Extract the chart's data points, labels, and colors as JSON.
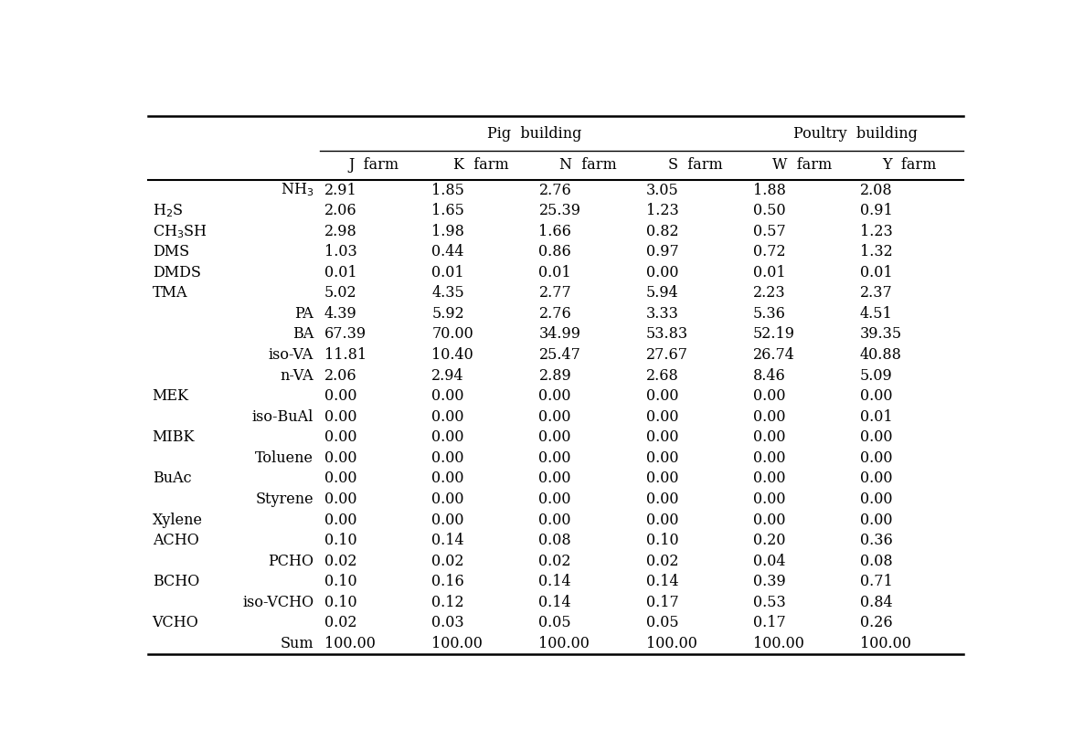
{
  "row_labels_display": [
    "NH$_3$",
    "H$_2$S",
    "CH$_3$SH",
    "DMS",
    "DMDS",
    "TMA",
    "PA",
    "BA",
    "iso-VA",
    "n-VA",
    "MEK",
    "iso-BuAl",
    "MIBK",
    "Toluene",
    "BuAc",
    "Styrene",
    "Xylene",
    "ACHO",
    "PCHO",
    "BCHO",
    "iso-VCHO",
    "VCHO",
    "Sum"
  ],
  "row_alignments": [
    "right",
    "left",
    "left",
    "left",
    "left",
    "left",
    "right",
    "right",
    "right",
    "right",
    "left",
    "right",
    "left",
    "right",
    "left",
    "right",
    "left",
    "left",
    "right",
    "left",
    "right",
    "left",
    "right"
  ],
  "col_headers": [
    "J  farm",
    "K  farm",
    "N  farm",
    "S  farm",
    "W  farm",
    "Y  farm"
  ],
  "pig_header": "Pig  building",
  "poultry_header": "Poultry  building",
  "data": [
    [
      2.91,
      1.85,
      2.76,
      3.05,
      1.88,
      2.08
    ],
    [
      2.06,
      1.65,
      25.39,
      1.23,
      0.5,
      0.91
    ],
    [
      2.98,
      1.98,
      1.66,
      0.82,
      0.57,
      1.23
    ],
    [
      1.03,
      0.44,
      0.86,
      0.97,
      0.72,
      1.32
    ],
    [
      0.01,
      0.01,
      0.01,
      0.0,
      0.01,
      0.01
    ],
    [
      5.02,
      4.35,
      2.77,
      5.94,
      2.23,
      2.37
    ],
    [
      4.39,
      5.92,
      2.76,
      3.33,
      5.36,
      4.51
    ],
    [
      67.39,
      70.0,
      34.99,
      53.83,
      52.19,
      39.35
    ],
    [
      11.81,
      10.4,
      25.47,
      27.67,
      26.74,
      40.88
    ],
    [
      2.06,
      2.94,
      2.89,
      2.68,
      8.46,
      5.09
    ],
    [
      0.0,
      0.0,
      0.0,
      0.0,
      0.0,
      0.0
    ],
    [
      0.0,
      0.0,
      0.0,
      0.0,
      0.0,
      0.01
    ],
    [
      0.0,
      0.0,
      0.0,
      0.0,
      0.0,
      0.0
    ],
    [
      0.0,
      0.0,
      0.0,
      0.0,
      0.0,
      0.0
    ],
    [
      0.0,
      0.0,
      0.0,
      0.0,
      0.0,
      0.0
    ],
    [
      0.0,
      0.0,
      0.0,
      0.0,
      0.0,
      0.0
    ],
    [
      0.0,
      0.0,
      0.0,
      0.0,
      0.0,
      0.0
    ],
    [
      0.1,
      0.14,
      0.08,
      0.1,
      0.2,
      0.36
    ],
    [
      0.02,
      0.02,
      0.02,
      0.02,
      0.04,
      0.08
    ],
    [
      0.1,
      0.16,
      0.14,
      0.14,
      0.39,
      0.71
    ],
    [
      0.1,
      0.12,
      0.14,
      0.17,
      0.53,
      0.84
    ],
    [
      0.02,
      0.03,
      0.05,
      0.05,
      0.17,
      0.26
    ],
    [
      100.0,
      100.0,
      100.0,
      100.0,
      100.0,
      100.0
    ]
  ],
  "background_color": "#ffffff",
  "text_color": "#000000",
  "font_size": 11.5,
  "header_font_size": 11.5
}
